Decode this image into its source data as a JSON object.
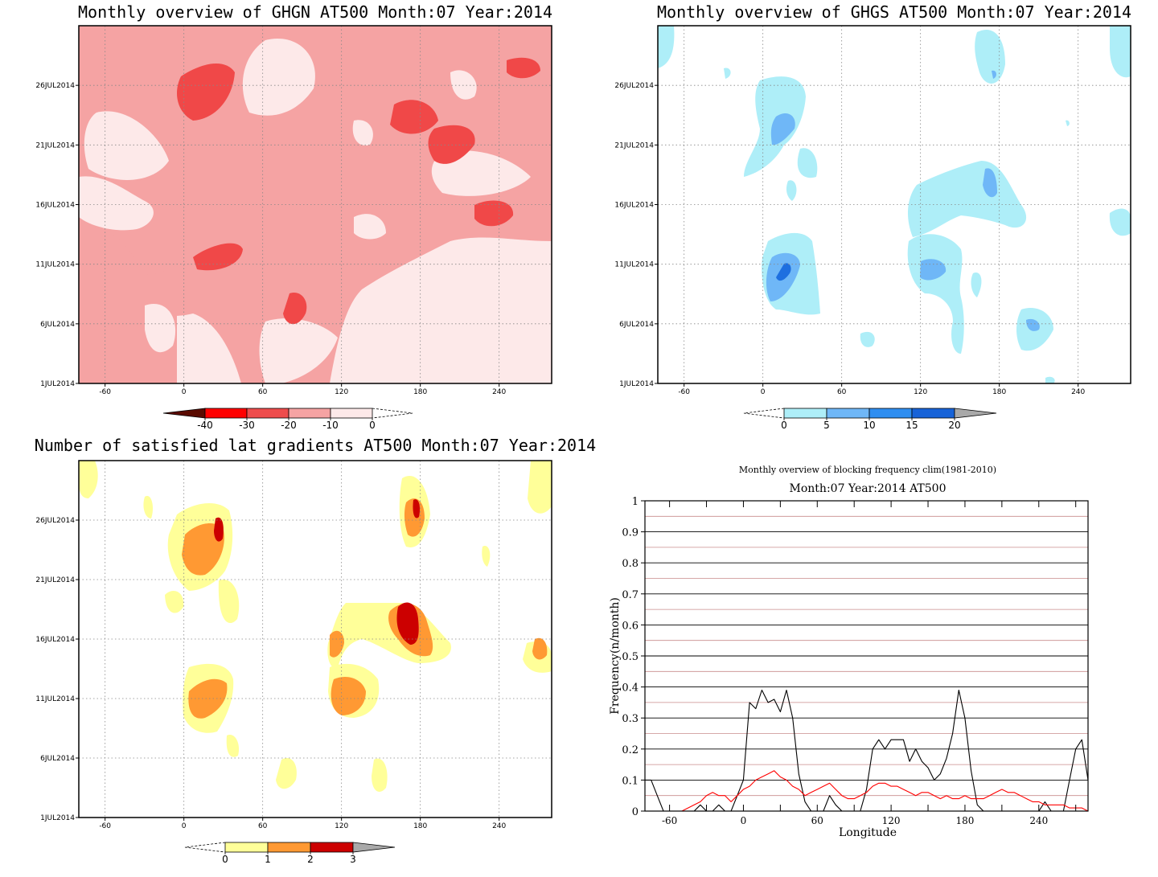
{
  "panels": [
    {
      "title": "Monthly overview of GHGN AT500 Month:07 Year:2014",
      "x_ticks": [
        "-60",
        "0",
        "60",
        "120",
        "180",
        "240"
      ],
      "y_ticks": [
        "1JUL2014",
        "6JUL2014",
        "11JUL2014",
        "16JUL2014",
        "21JUL2014",
        "26JUL2014"
      ],
      "colorbar": {
        "labels": [
          "-40",
          "-30",
          "-20",
          "-10",
          "0"
        ],
        "colors": [
          "#5a0a00",
          "#ff0000",
          "#ee4c4c",
          "#f5a3a3",
          "#fde9e9"
        ]
      },
      "fill_colors": {
        "light": "#fde9e9",
        "mid": "#f5a3a3",
        "dark": "#f04848"
      }
    },
    {
      "title": "Monthly overview of GHGS AT500 Month:07 Year:2014",
      "x_ticks": [
        "-60",
        "0",
        "60",
        "120",
        "180",
        "240"
      ],
      "y_ticks": [
        "1JUL2014",
        "6JUL2014",
        "11JUL2014",
        "16JUL2014",
        "21JUL2014",
        "26JUL2014"
      ],
      "colorbar": {
        "labels": [
          "0",
          "5",
          "10",
          "15",
          "20"
        ],
        "colors": [
          "#aeeef8",
          "#6fb7f7",
          "#2f8ef0",
          "#1863d8",
          "#a9a9a9"
        ]
      },
      "fill_colors": {
        "light": "#aeeef8",
        "mid": "#6fb7f7",
        "dark": "#1e6fe0"
      }
    },
    {
      "title": "Number of satisfied lat gradients AT500 Month:07 Year:2014",
      "x_ticks": [
        "-60",
        "0",
        "60",
        "120",
        "180",
        "240"
      ],
      "y_ticks": [
        "1JUL2014",
        "6JUL2014",
        "11JUL2014",
        "16JUL2014",
        "21JUL2014",
        "26JUL2014"
      ],
      "colorbar": {
        "labels": [
          "0",
          "1",
          "2",
          "3"
        ],
        "colors": [
          "#ffff99",
          "#ff9933",
          "#cc0000",
          "#a9a9a9"
        ]
      },
      "fill_colors": {
        "light": "#ffff99",
        "mid": "#ff9933",
        "dark": "#cc0000"
      }
    }
  ],
  "line_chart": {
    "title": "Monthly overview of blocking frequency clim(1981-2010)",
    "subtitle": "Month:07 Year:2014  AT500",
    "xlabel": "Longitude",
    "ylabel": "Frequency(n/month)"
  },
  "chart_data": [
    {
      "type": "heatmap",
      "title": "Monthly overview of GHGN AT500 Month:07 Year:2014",
      "x_range": [
        -80,
        280
      ],
      "y_range": [
        "1JUL2014",
        "31JUL2014"
      ],
      "legend": "bottom colorbar",
      "levels": [
        -40,
        -30,
        -20,
        -10,
        0
      ],
      "note_regions": [
        {
          "lon": 27,
          "day": 25,
          "level": "dark"
        },
        {
          "lon": 165,
          "day": 22,
          "level": "dark"
        },
        {
          "lon": 205,
          "day": 20,
          "level": "dark"
        },
        {
          "lon": 240,
          "day": 15,
          "level": "dark"
        },
        {
          "lon": 38,
          "day": 12,
          "level": "dark"
        },
        {
          "lon": 87,
          "day": 8,
          "level": "dark"
        },
        {
          "lon": 262,
          "day": 27,
          "level": "dark"
        }
      ]
    },
    {
      "type": "heatmap",
      "title": "Monthly overview of GHGS AT500 Month:07 Year:2014",
      "x_range": [
        -80,
        280
      ],
      "y_range": [
        "1JUL2014",
        "31JUL2014"
      ],
      "legend": "bottom colorbar",
      "levels": [
        0,
        5,
        10,
        15,
        20
      ],
      "note_regions": [
        {
          "lon": 15,
          "day": 10,
          "level": "dark"
        },
        {
          "lon": 17,
          "day": 22,
          "level": "mid"
        },
        {
          "lon": 170,
          "day": 18,
          "level": "mid"
        },
        {
          "lon": 130,
          "day": 11,
          "level": "mid"
        },
        {
          "lon": 205,
          "day": 6,
          "level": "mid"
        },
        {
          "lon": 177,
          "day": 27,
          "level": "mid"
        }
      ]
    },
    {
      "type": "heatmap",
      "title": "Number of satisfied lat gradients AT500 Month:07 Year:2014",
      "x_range": [
        -80,
        280
      ],
      "y_range": [
        "1JUL2014",
        "31JUL2014"
      ],
      "legend": "bottom colorbar",
      "levels": [
        0,
        1,
        2,
        3
      ],
      "note_regions": [
        {
          "lon": 28,
          "day": 24,
          "level": "dark"
        },
        {
          "lon": 175,
          "day": 27,
          "level": "dark"
        },
        {
          "lon": 170,
          "day": 18,
          "level": "dark"
        },
        {
          "lon": 20,
          "day": 10,
          "level": "mid"
        },
        {
          "lon": 125,
          "day": 11,
          "level": "mid"
        },
        {
          "lon": 115,
          "day": 16,
          "level": "mid"
        },
        {
          "lon": 270,
          "day": 15,
          "level": "mid"
        }
      ]
    },
    {
      "type": "line",
      "title": "Monthly overview of blocking frequency clim(1981-2010)",
      "subtitle": "Month:07 Year:2014  AT500",
      "xlabel": "Longitude",
      "ylabel": "Frequency(n/month)",
      "xlim": [
        -80,
        280
      ],
      "ylim": [
        0,
        1
      ],
      "x_ticks": [
        "-60",
        "0",
        "60",
        "120",
        "180",
        "240"
      ],
      "y_ticks": [
        "0",
        "0.1",
        "0.2",
        "0.3",
        "0.4",
        "0.5",
        "0.6",
        "0.7",
        "0.8",
        "0.9",
        "1"
      ],
      "grid": true,
      "series": [
        {
          "color": "#000000",
          "x": [
            -80,
            -75,
            -70,
            -65,
            -60,
            -55,
            -50,
            -45,
            -40,
            -35,
            -30,
            -25,
            -20,
            -15,
            -10,
            -5,
            0,
            5,
            10,
            15,
            20,
            25,
            30,
            35,
            40,
            45,
            50,
            55,
            60,
            65,
            70,
            75,
            80,
            85,
            90,
            95,
            100,
            105,
            110,
            115,
            120,
            125,
            130,
            135,
            140,
            145,
            150,
            155,
            160,
            165,
            170,
            175,
            180,
            185,
            190,
            195,
            200,
            205,
            210,
            215,
            220,
            225,
            230,
            235,
            240,
            245,
            250,
            255,
            260,
            265,
            270,
            275,
            280
          ],
          "y": [
            0.1,
            0.1,
            0.05,
            0,
            0,
            0,
            0,
            0,
            0,
            0.02,
            0,
            0,
            0.02,
            0,
            0,
            0.05,
            0.1,
            0.35,
            0.33,
            0.39,
            0.35,
            0.36,
            0.32,
            0.39,
            0.3,
            0.12,
            0.03,
            0,
            0,
            0,
            0.05,
            0.02,
            0,
            0,
            0,
            0,
            0.07,
            0.2,
            0.23,
            0.2,
            0.23,
            0.23,
            0.23,
            0.16,
            0.2,
            0.16,
            0.14,
            0.1,
            0.12,
            0.17,
            0.25,
            0.39,
            0.3,
            0.13,
            0.02,
            0,
            0,
            0,
            0,
            0,
            0,
            0,
            0,
            0,
            0,
            0.03,
            0,
            0,
            0,
            0.1,
            0.2,
            0.23,
            0.1
          ]
        },
        {
          "color": "#ff0000",
          "x": [
            -80,
            -75,
            -70,
            -65,
            -60,
            -55,
            -50,
            -45,
            -40,
            -35,
            -30,
            -25,
            -20,
            -15,
            -10,
            -5,
            0,
            5,
            10,
            15,
            20,
            25,
            30,
            35,
            40,
            45,
            50,
            55,
            60,
            65,
            70,
            75,
            80,
            85,
            90,
            95,
            100,
            105,
            110,
            115,
            120,
            125,
            130,
            135,
            140,
            145,
            150,
            155,
            160,
            165,
            170,
            175,
            180,
            185,
            190,
            195,
            200,
            205,
            210,
            215,
            220,
            225,
            230,
            235,
            240,
            245,
            250,
            255,
            260,
            265,
            270,
            275,
            280
          ],
          "y": [
            0,
            0,
            0,
            0,
            0,
            0,
            0,
            0.01,
            0.02,
            0.03,
            0.05,
            0.06,
            0.05,
            0.05,
            0.03,
            0.05,
            0.07,
            0.08,
            0.1,
            0.11,
            0.12,
            0.13,
            0.11,
            0.1,
            0.08,
            0.07,
            0.05,
            0.06,
            0.07,
            0.08,
            0.09,
            0.07,
            0.05,
            0.04,
            0.04,
            0.05,
            0.06,
            0.08,
            0.09,
            0.09,
            0.08,
            0.08,
            0.07,
            0.06,
            0.05,
            0.06,
            0.06,
            0.05,
            0.04,
            0.05,
            0.04,
            0.04,
            0.05,
            0.04,
            0.04,
            0.04,
            0.05,
            0.06,
            0.07,
            0.06,
            0.06,
            0.05,
            0.04,
            0.03,
            0.03,
            0.02,
            0.02,
            0.02,
            0.02,
            0.01,
            0.01,
            0.01,
            0
          ]
        }
      ]
    }
  ]
}
